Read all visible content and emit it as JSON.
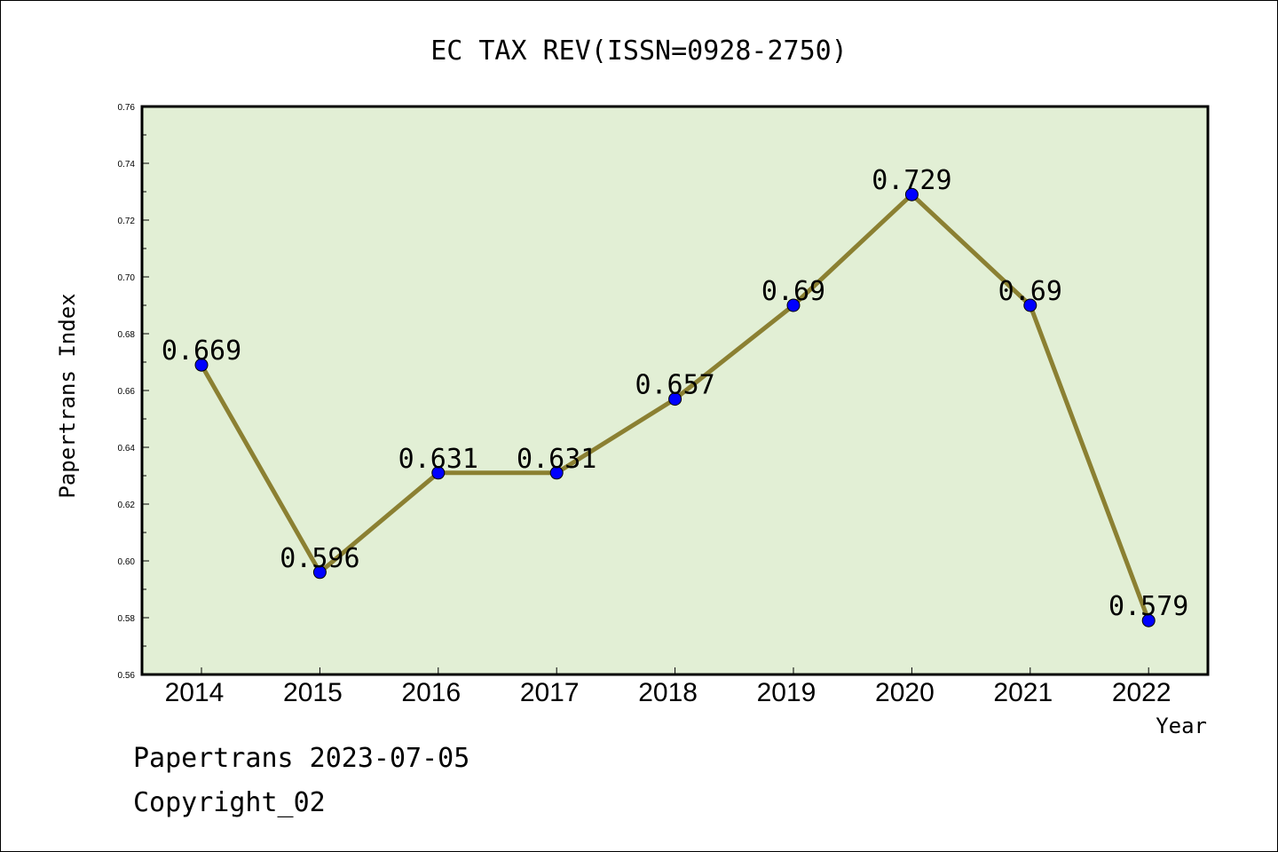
{
  "chart_data": {
    "type": "line",
    "title": "EC TAX REV(ISSN=0928-2750)",
    "xlabel": "Year",
    "ylabel": "Papertrans Index",
    "categories": [
      "2014",
      "2015",
      "2016",
      "2017",
      "2018",
      "2019",
      "2020",
      "2021",
      "2022"
    ],
    "values": [
      0.669,
      0.596,
      0.631,
      0.631,
      0.657,
      0.69,
      0.729,
      0.69,
      0.579
    ],
    "data_labels": [
      "0.669",
      "0.596",
      "0.631",
      "0.631",
      "0.657",
      "0.69",
      "0.729",
      "0.69",
      "0.579"
    ],
    "ylim": [
      0.56,
      0.76
    ],
    "yticks": [
      "0.56",
      "0.58",
      "0.60",
      "0.62",
      "0.64",
      "0.66",
      "0.68",
      "0.70",
      "0.72",
      "0.74",
      "0.76"
    ],
    "grid": false,
    "line_color": "#8B8032",
    "marker_color": "#0000FF",
    "plot_background": "#E2EFD5"
  },
  "footer": {
    "line1": "Papertrans 2023-07-05",
    "line2": "Copyright_02"
  }
}
